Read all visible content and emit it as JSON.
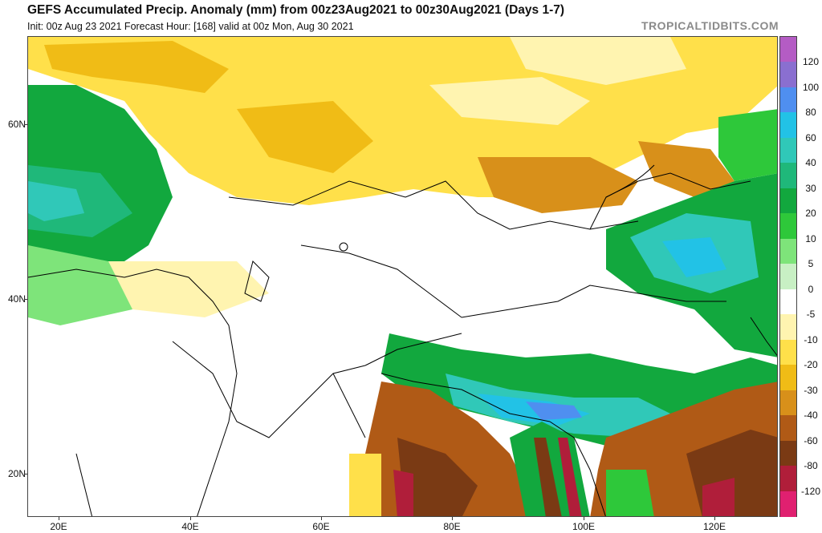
{
  "header": {
    "title": "GEFS Accumulated Precip. Anomaly (mm) from 00z23Aug2021 to 00z30Aug2021 (Days 1-7)",
    "subtitle": "Init: 00z Aug 23 2021    Forecast Hour: [168]    valid at 00z Mon, Aug 30 2021",
    "brand": "TROPICALTIDBITS.COM"
  },
  "axes": {
    "lat_labels": [
      "60N",
      "40N",
      "20N"
    ],
    "lon_labels": [
      "20E",
      "40E",
      "60E",
      "80E",
      "100E",
      "120E"
    ]
  },
  "colorbar": {
    "labels": [
      "120",
      "100",
      "80",
      "60",
      "40",
      "30",
      "20",
      "10",
      "5",
      "0",
      "-5",
      "-10",
      "-20",
      "-30",
      "-40",
      "-60",
      "-80",
      "-120"
    ],
    "colors": [
      "#b45cc4",
      "#8a6fd0",
      "#4f8ff0",
      "#22c2e6",
      "#30c8b8",
      "#1fb87a",
      "#12a83e",
      "#2ec83a",
      "#7ee47a",
      "#c8f0c4",
      "#ffffff",
      "#fff4b0",
      "#ffe04a",
      "#f0bc16",
      "#d8901a",
      "#b05a16",
      "#7a3a14",
      "#b01e3a",
      "#e02070"
    ]
  },
  "map": {
    "region": "Eurasia / Asia",
    "style": {
      "land_border_color": "#000000",
      "positive_colors": [
        "#c8f0c4",
        "#7ee47a",
        "#2ec83a",
        "#12a83e",
        "#30c8b8",
        "#22c2e6",
        "#4f8ff0"
      ],
      "negative_colors": [
        "#fff4b0",
        "#ffe04a",
        "#f0bc16",
        "#d8901a",
        "#b05a16",
        "#7a3a14",
        "#b01e3a"
      ]
    }
  }
}
